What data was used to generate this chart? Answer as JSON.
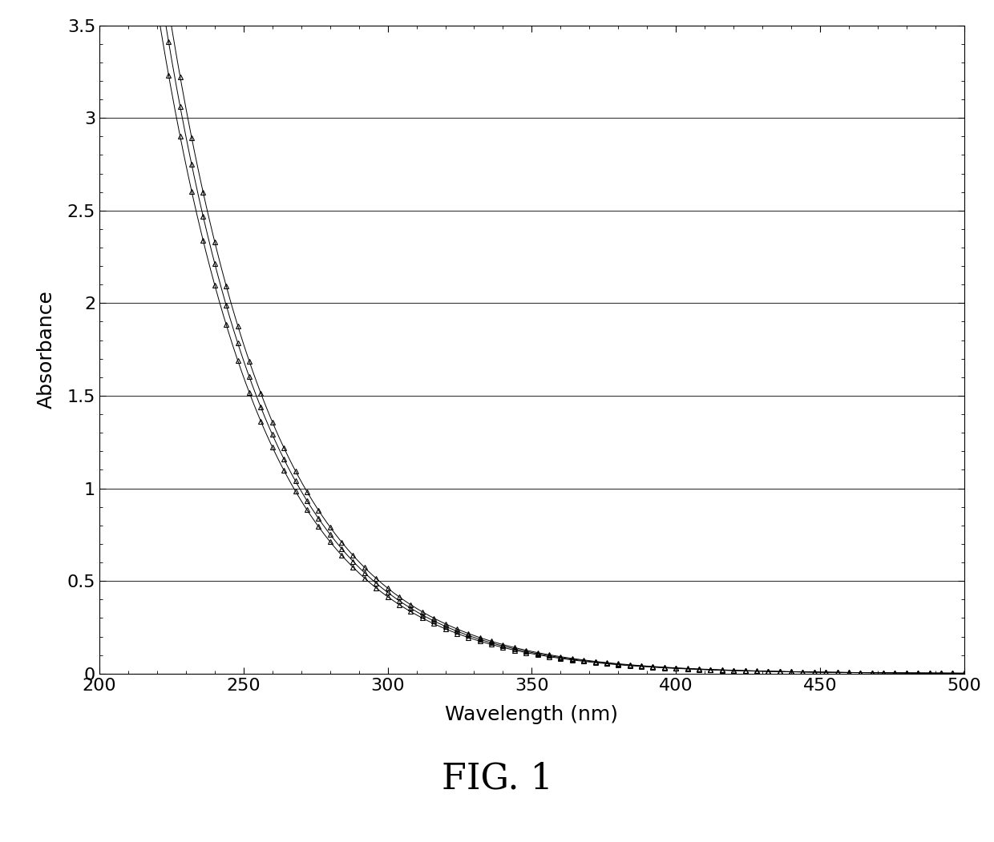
{
  "title": "FIG. 1",
  "xlabel": "Wavelength (nm)",
  "ylabel": "Absorbance",
  "xlim": [
    200,
    500
  ],
  "ylim": [
    0,
    3.5
  ],
  "yticks": [
    0,
    0.5,
    1,
    1.5,
    2,
    2.5,
    3,
    3.5
  ],
  "xticks": [
    200,
    250,
    300,
    350,
    400,
    450,
    500
  ],
  "background_color": "#ffffff",
  "line_color": "#000000",
  "marker_color": "#000000",
  "wavelength_start": 220,
  "wavelength_end": 500,
  "marker_step": 4,
  "marker_size": 4,
  "line_width": 0.7,
  "series_params": [
    {
      "a": 3.8,
      "b": 0.027,
      "c": 0.0
    },
    {
      "a": 3.6,
      "b": 0.027,
      "c": 0.0
    },
    {
      "a": 4.0,
      "b": 0.027,
      "c": 0.0
    }
  ]
}
